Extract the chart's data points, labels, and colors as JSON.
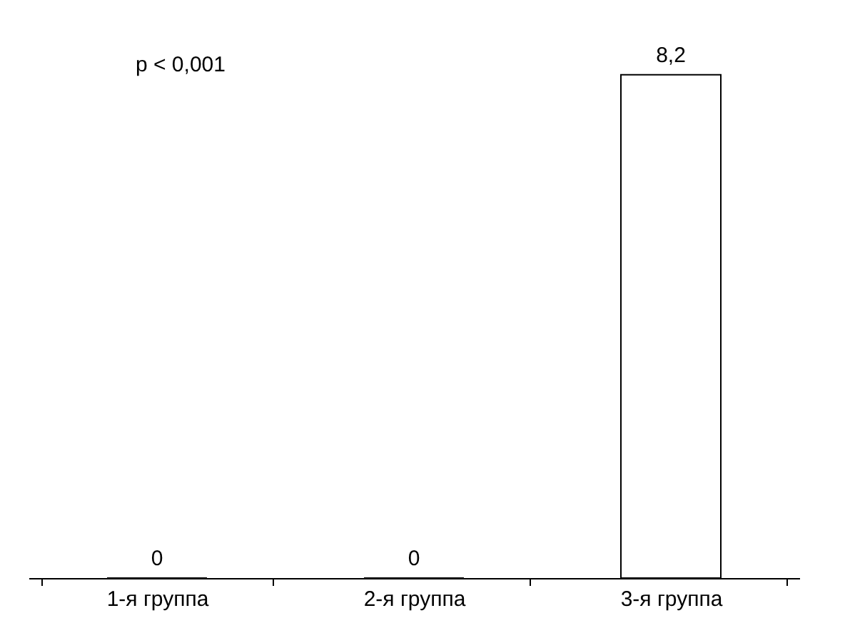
{
  "chart_data": {
    "type": "bar",
    "categories": [
      "1-я группа",
      "2-я группа",
      "3-я группа"
    ],
    "values": [
      0,
      0,
      8.2
    ],
    "colors": [
      "#c8c8c8",
      "#707070",
      "#ffffff"
    ],
    "value_labels": [
      "0",
      "0",
      "8,2"
    ],
    "annotations": [
      "p < 0,001"
    ],
    "grid": false,
    "legend": false
  }
}
